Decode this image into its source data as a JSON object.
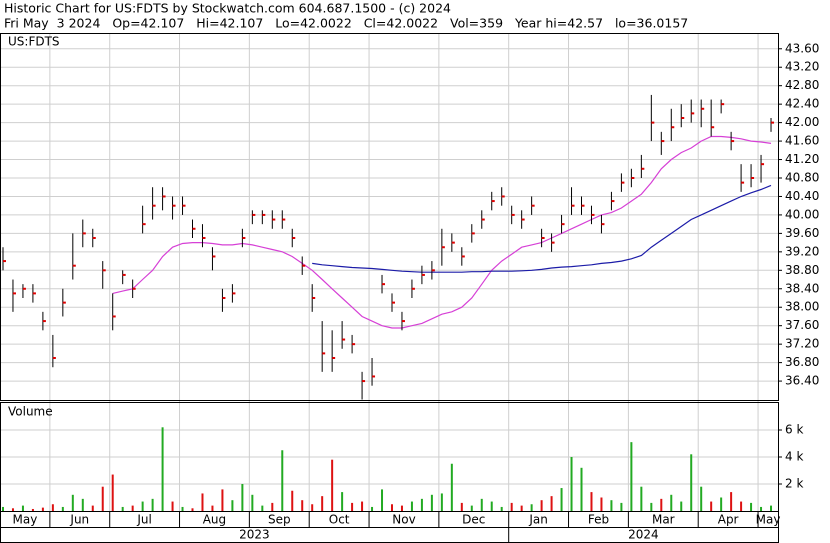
{
  "chart_data": {
    "type": "ohlc",
    "title": "Historic Chart for US:FDTS by Stockwatch.com 604.687.1500 - (c) 2024",
    "subtitle": "Fri May  3 2024   Op=42.107   Hi=42.107   Lo=42.0022   Cl=42.0022   Vol=359   Year hi=42.57   lo=36.0157",
    "symbol_label": "US:FDTS",
    "volume_label": "Volume",
    "grid": true,
    "bar_color": "#000000",
    "close_color": "#dd0000",
    "xlim": [
      0,
      78
    ],
    "xticks": [
      {
        "value": 0,
        "label": "May"
      },
      {
        "value": 5,
        "label": "Jun"
      },
      {
        "value": 11,
        "label": "Jul"
      },
      {
        "value": 18,
        "label": "Aug"
      },
      {
        "value": 25,
        "label": "Sep"
      },
      {
        "value": 31,
        "label": "Oct"
      },
      {
        "value": 37,
        "label": "Nov"
      },
      {
        "value": 44,
        "label": "Dec"
      },
      {
        "value": 51,
        "label": "Jan"
      },
      {
        "value": 57,
        "label": "Feb"
      },
      {
        "value": 63,
        "label": "Mar"
      },
      {
        "value": 70,
        "label": "Apr"
      },
      {
        "value": 76,
        "label": "May"
      }
    ],
    "years": [
      {
        "value": 0,
        "label": "2023"
      },
      {
        "value": 51,
        "label": "2024"
      }
    ],
    "ylim": [
      35.99,
      43.92
    ],
    "yticks": [
      {
        "value": 36.4,
        "label": "36.40"
      },
      {
        "value": 36.8,
        "label": "36.80"
      },
      {
        "value": 37.2,
        "label": "37.20"
      },
      {
        "value": 37.6,
        "label": "37.60"
      },
      {
        "value": 38.0,
        "label": "38.00"
      },
      {
        "value": 38.4,
        "label": "38.40"
      },
      {
        "value": 38.8,
        "label": "38.80"
      },
      {
        "value": 39.2,
        "label": "39.20"
      },
      {
        "value": 39.6,
        "label": "39.60"
      },
      {
        "value": 40.0,
        "label": "40.00"
      },
      {
        "value": 40.4,
        "label": "40.40"
      },
      {
        "value": 40.8,
        "label": "40.80"
      },
      {
        "value": 41.2,
        "label": "41.20"
      },
      {
        "value": 41.6,
        "label": "41.60"
      },
      {
        "value": 42.0,
        "label": "42.00"
      },
      {
        "value": 42.4,
        "label": "42.40"
      },
      {
        "value": 42.8,
        "label": "42.80"
      },
      {
        "value": 43.2,
        "label": "43.20"
      },
      {
        "value": 43.6,
        "label": "43.60"
      }
    ],
    "high": [
      39.3,
      38.6,
      38.5,
      38.5,
      37.9,
      37.4,
      38.4,
      39.6,
      39.9,
      39.7,
      39.0,
      38.3,
      38.8,
      38.6,
      40.2,
      40.6,
      40.6,
      40.4,
      40.4,
      39.9,
      39.8,
      39.3,
      38.4,
      38.5,
      39.7,
      40.1,
      40.1,
      40.1,
      40.1,
      39.7,
      39.1,
      38.5,
      37.7,
      37.5,
      37.7,
      37.4,
      36.6,
      36.9,
      38.7,
      38.3,
      37.9,
      38.6,
      38.9,
      39.0,
      39.7,
      39.6,
      39.3,
      39.8,
      40.1,
      40.5,
      40.6,
      40.2,
      40.1,
      40.4,
      39.7,
      39.6,
      40.0,
      40.6,
      40.4,
      40.2,
      40.0,
      40.5,
      40.9,
      41.0,
      41.3,
      42.6,
      41.8,
      42.3,
      42.4,
      42.5,
      42.5,
      42.5,
      42.5,
      41.8,
      41.1,
      41.1,
      41.3,
      42.1
    ],
    "low": [
      38.8,
      37.9,
      38.2,
      38.1,
      37.5,
      36.7,
      37.8,
      38.6,
      39.3,
      39.3,
      38.4,
      37.5,
      38.5,
      38.2,
      39.6,
      39.9,
      40.1,
      39.9,
      40.0,
      39.5,
      39.3,
      38.8,
      37.9,
      38.1,
      39.3,
      39.8,
      39.8,
      39.7,
      39.7,
      39.3,
      38.7,
      37.9,
      36.6,
      36.6,
      37.1,
      37.0,
      36.0,
      36.3,
      38.3,
      37.9,
      37.5,
      38.2,
      38.5,
      38.6,
      38.9,
      39.2,
      38.9,
      39.4,
      39.7,
      40.1,
      40.2,
      39.8,
      39.7,
      40.0,
      39.3,
      39.2,
      39.6,
      40.0,
      40.0,
      39.8,
      39.6,
      40.1,
      40.5,
      40.6,
      40.8,
      41.6,
      41.3,
      41.6,
      41.9,
      42.0,
      41.9,
      41.7,
      42.2,
      41.4,
      40.5,
      40.6,
      40.7,
      41.8
    ],
    "close": [
      39.0,
      38.3,
      38.4,
      38.3,
      37.7,
      36.9,
      38.1,
      38.9,
      39.6,
      39.5,
      38.8,
      37.8,
      38.7,
      38.4,
      39.8,
      40.2,
      40.4,
      40.2,
      40.2,
      39.7,
      39.5,
      39.1,
      38.2,
      38.3,
      39.5,
      40.0,
      40.0,
      39.9,
      39.9,
      39.5,
      38.9,
      38.2,
      37.0,
      36.9,
      37.3,
      37.2,
      36.4,
      36.5,
      38.5,
      38.1,
      37.7,
      38.4,
      38.7,
      38.8,
      39.3,
      39.4,
      39.1,
      39.6,
      39.9,
      40.3,
      40.4,
      40.0,
      39.9,
      40.2,
      39.5,
      39.4,
      39.8,
      40.2,
      40.2,
      40.0,
      39.8,
      40.3,
      40.7,
      40.8,
      41.0,
      42.0,
      41.6,
      41.9,
      42.1,
      42.2,
      42.3,
      41.9,
      42.4,
      41.6,
      40.7,
      40.8,
      41.1,
      42.0
    ],
    "ma_lines": [
      {
        "color": "#d640d6",
        "values": [
          null,
          null,
          null,
          null,
          null,
          null,
          null,
          null,
          null,
          null,
          null,
          38.3,
          38.35,
          38.4,
          38.6,
          38.8,
          39.1,
          39.3,
          39.38,
          39.4,
          39.4,
          39.38,
          39.35,
          39.35,
          39.38,
          39.35,
          39.3,
          39.25,
          39.2,
          39.1,
          38.95,
          38.8,
          38.6,
          38.4,
          38.2,
          38.0,
          37.8,
          37.7,
          37.6,
          37.55,
          37.55,
          37.6,
          37.65,
          37.75,
          37.85,
          37.9,
          38.0,
          38.2,
          38.5,
          38.8,
          39.0,
          39.15,
          39.3,
          39.35,
          39.4,
          39.5,
          39.6,
          39.7,
          39.8,
          39.9,
          40.0,
          40.05,
          40.15,
          40.3,
          40.45,
          40.7,
          41.0,
          41.2,
          41.35,
          41.45,
          41.6,
          41.7,
          41.7,
          41.68,
          41.65,
          41.6,
          41.58,
          41.55
        ]
      },
      {
        "color": "#1c1ca8",
        "values": [
          null,
          null,
          null,
          null,
          null,
          null,
          null,
          null,
          null,
          null,
          null,
          null,
          null,
          null,
          null,
          null,
          null,
          null,
          null,
          null,
          null,
          null,
          null,
          null,
          null,
          null,
          null,
          null,
          null,
          null,
          null,
          38.95,
          38.92,
          38.9,
          38.88,
          38.86,
          38.85,
          38.84,
          38.82,
          38.8,
          38.78,
          38.77,
          38.76,
          38.76,
          38.76,
          38.76,
          38.76,
          38.77,
          38.77,
          38.78,
          38.78,
          38.78,
          38.79,
          38.8,
          38.82,
          38.85,
          38.87,
          38.88,
          38.9,
          38.92,
          38.95,
          38.97,
          39.0,
          39.05,
          39.12,
          39.3,
          39.45,
          39.6,
          39.75,
          39.9,
          40.0,
          40.1,
          40.2,
          40.3,
          40.4,
          40.48,
          40.55,
          40.64
        ]
      }
    ],
    "volume": {
      "up_color": "#22aa22",
      "down_color": "#dd1111",
      "ylim": [
        0,
        8000
      ],
      "yticks": [
        {
          "value": 2000,
          "label": "2 k"
        },
        {
          "value": 4000,
          "label": "4 k"
        },
        {
          "value": 6000,
          "label": "6 k"
        }
      ],
      "values": [
        300,
        200,
        400,
        150,
        250,
        500,
        300,
        1200,
        900,
        400,
        1800,
        2700,
        300,
        400,
        700,
        900,
        6200,
        700,
        300,
        200,
        1300,
        400,
        1600,
        800,
        2000,
        1200,
        400,
        600,
        4500,
        1500,
        800,
        500,
        1100,
        3800,
        1400,
        600,
        700,
        300,
        1600,
        500,
        400,
        700,
        900,
        1200,
        1300,
        3500,
        600,
        400,
        900,
        700,
        300,
        600,
        400,
        500,
        800,
        1100,
        1700,
        4000,
        3200,
        1400,
        1000,
        800,
        600,
        5100,
        1800,
        600,
        900,
        1200,
        700,
        4200,
        1800,
        700,
        1000,
        1400,
        700,
        600,
        300,
        400
      ]
    }
  }
}
